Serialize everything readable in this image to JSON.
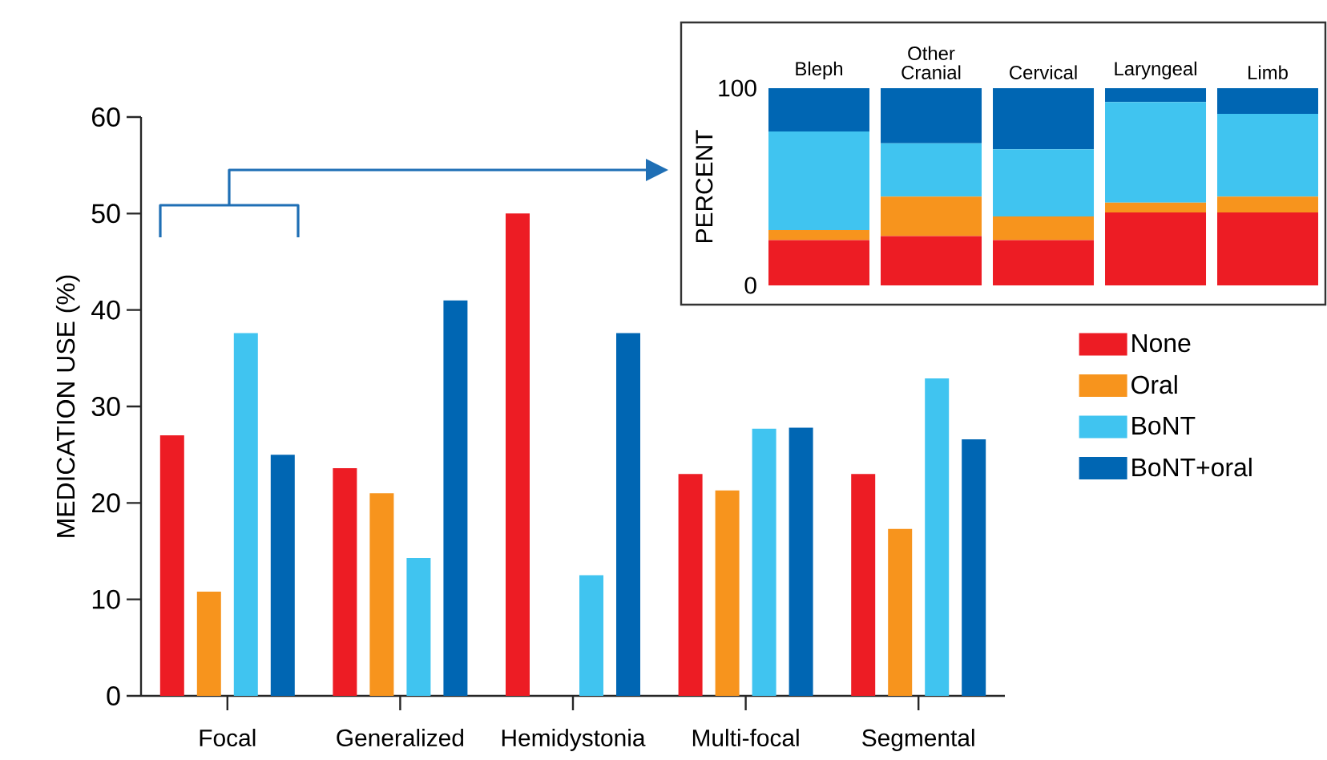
{
  "chart_data": [
    {
      "type": "bar",
      "ylabel": "MEDICATION USE (%)",
      "categories": [
        "Focal",
        "Generalized",
        "Hemidystonia",
        "Multi-focal",
        "Segmental"
      ],
      "series": [
        {
          "name": "None",
          "color": "#ed1c24",
          "values": [
            27,
            23.6,
            50,
            23,
            23
          ]
        },
        {
          "name": "Oral",
          "color": "#f7941d",
          "values": [
            10.8,
            21,
            null,
            21.3,
            17.3
          ]
        },
        {
          "name": "BoNT",
          "color": "#40c4f0",
          "values": [
            37.6,
            14.3,
            12.5,
            27.7,
            32.9
          ]
        },
        {
          "name": "BoNT+oral",
          "color": "#0066b3",
          "values": [
            25,
            41,
            37.6,
            27.8,
            26.6
          ]
        }
      ],
      "ylim": [
        0,
        60
      ],
      "yticks": [
        0,
        10,
        20,
        30,
        40,
        50,
        60
      ],
      "grid": false,
      "legend": "right"
    },
    {
      "type": "bar",
      "stacked": true,
      "ylabel": "PERCENT",
      "categories": [
        "Bleph",
        "Other Cranial",
        "Cervical",
        "Laryngeal",
        "Limb"
      ],
      "series": [
        {
          "color": "#ed1c24",
          "values": [
            23,
            25,
            23,
            37,
            37
          ]
        },
        {
          "color": "#f7941d",
          "values": [
            5,
            20,
            12,
            5,
            8
          ]
        },
        {
          "color": "#40c4f0",
          "values": [
            50,
            27,
            34,
            51,
            42
          ]
        },
        {
          "color": "#0066b3",
          "values": [
            22,
            28,
            31,
            7,
            13
          ]
        }
      ],
      "ylim": [
        0,
        100
      ],
      "yticks": [
        0,
        100
      ],
      "grid": false
    }
  ]
}
